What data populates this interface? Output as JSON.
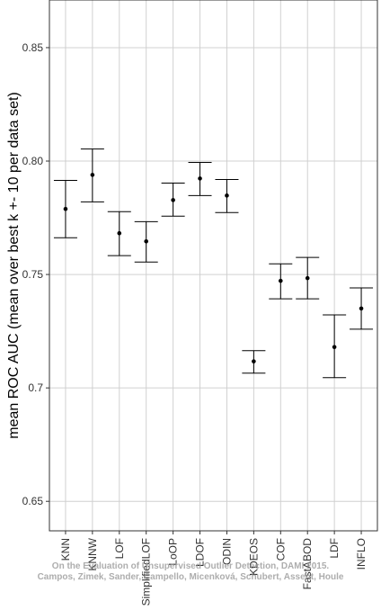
{
  "chart_data": {
    "type": "errorbar",
    "y_label": "mean ROC AUC (mean over best k +- 10 per data set)",
    "categories": [
      "KNN",
      "KNNW",
      "LOF",
      "SimplifiedLOF",
      "LoOP",
      "LDOF",
      "ODIN",
      "KDEOS",
      "COF",
      "FastABOD",
      "LDF",
      "INFLO"
    ],
    "values": [
      0.7789,
      0.7939,
      0.7682,
      0.7646,
      0.7828,
      0.7923,
      0.7848,
      0.7117,
      0.7472,
      0.7484,
      0.718,
      0.735
    ],
    "upper": [
      0.7915,
      0.8053,
      0.7777,
      0.7733,
      0.7903,
      0.7994,
      0.7919,
      0.7164,
      0.7547,
      0.7575,
      0.7322,
      0.7441
    ],
    "lower": [
      0.7662,
      0.782,
      0.7583,
      0.7555,
      0.7757,
      0.7848,
      0.7773,
      0.7065,
      0.7393,
      0.7393,
      0.7045,
      0.7259
    ],
    "color": "#000000",
    "ylim": [
      0.637,
      0.871
    ],
    "yticks": [
      0.65,
      0.7,
      {
        "value": 0.75,
        "label": "0.75"
      },
      {
        "value": 0.8,
        "label": "0.80"
      },
      0.85
    ],
    "grid": true,
    "watermark": [
      "On the Evaluation of Unsupervised Outlier Detection, DAMI 2015.",
      "Campos, Zimek, Sander, Campello, Micenková, Schubert, Assent, Houle"
    ]
  }
}
